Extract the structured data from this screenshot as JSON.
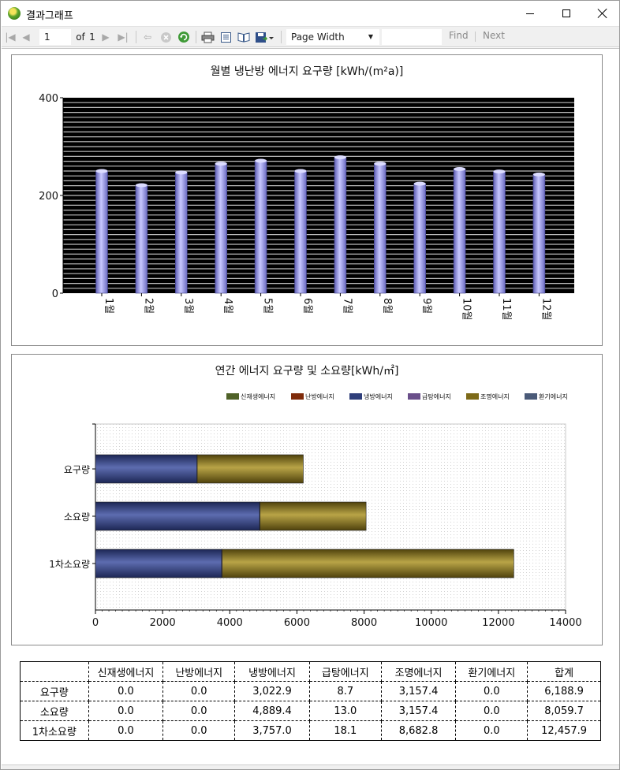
{
  "window": {
    "title": "결과그래프"
  },
  "toolbar": {
    "page_current": "1",
    "page_of": "of",
    "page_total": "1",
    "zoom": "Page Width",
    "find_label": "Find",
    "next_label": "Next"
  },
  "icons": {
    "app": "app-logo-icon",
    "first": "first-page-icon",
    "prev": "previous-page-icon",
    "next": "next-page-icon",
    "last": "last-page-icon",
    "back": "back-icon",
    "stop": "stop-icon",
    "refresh": "refresh-icon",
    "print": "print-icon",
    "print_layout": "print-layout-icon",
    "page_setup": "page-setup-icon",
    "export": "export-icon"
  },
  "colors": {
    "monthly_bar": "#9c9ce6",
    "renewable": "#4f6228",
    "heating": "#7f2b0a",
    "cooling": "#2f3e7a",
    "hot_water": "#6a4f8a",
    "lighting": "#7d6a18",
    "ventilation": "#4a5a78"
  },
  "chart_data": [
    {
      "type": "bar",
      "title": "월별 냉난방 에너지 요구량 [kWh/(m²a)]",
      "categories": [
        "1월",
        "2월",
        "3월",
        "4월",
        "5월",
        "6월",
        "7월",
        "8월",
        "9월",
        "10월",
        "11월",
        "12월"
      ],
      "values": [
        250,
        221,
        247,
        265,
        271,
        250,
        278,
        265,
        224,
        254,
        249,
        243
      ],
      "ylim": [
        0,
        400
      ],
      "yticks": [
        "0",
        "200",
        "400"
      ],
      "grid": true,
      "background": "black"
    },
    {
      "type": "bar",
      "orientation": "horizontal",
      "stacked": true,
      "title": "연간 에너지 요구량 및 소요량[kWh/㎡]",
      "categories": [
        "요구량",
        "소요량",
        "1차소요량"
      ],
      "series": [
        {
          "name": "신재생에너지",
          "values": [
            0.0,
            0.0,
            0.0
          ]
        },
        {
          "name": "난방에너지",
          "values": [
            0.0,
            0.0,
            0.0
          ]
        },
        {
          "name": "냉방에너지",
          "values": [
            3022.9,
            4889.4,
            3757.0
          ]
        },
        {
          "name": "급탕에너지",
          "values": [
            8.7,
            13.0,
            18.1
          ]
        },
        {
          "name": "조명에너지",
          "values": [
            3157.4,
            3157.4,
            8682.8
          ]
        },
        {
          "name": "환기에너지",
          "values": [
            0.0,
            0.0,
            0.0
          ]
        }
      ],
      "xlim": [
        0,
        14000
      ],
      "xticks": [
        "0",
        "2000",
        "4000",
        "6000",
        "8000",
        "10000",
        "12000",
        "14000"
      ],
      "legend_position": "top-right",
      "grid": true
    }
  ],
  "table": {
    "headers": [
      "",
      "신재생에너지",
      "난방에너지",
      "냉방에너지",
      "급탕에너지",
      "조명에너지",
      "환기에너지",
      "합계"
    ],
    "rows": [
      [
        "요구량",
        "0.0",
        "0.0",
        "3,022.9",
        "8.7",
        "3,157.4",
        "0.0",
        "6,188.9"
      ],
      [
        "소요량",
        "0.0",
        "0.0",
        "4,889.4",
        "13.0",
        "3,157.4",
        "0.0",
        "8,059.7"
      ],
      [
        "1차소요량",
        "0.0",
        "0.0",
        "3,757.0",
        "18.1",
        "8,682.8",
        "0.0",
        "12,457.9"
      ]
    ]
  }
}
